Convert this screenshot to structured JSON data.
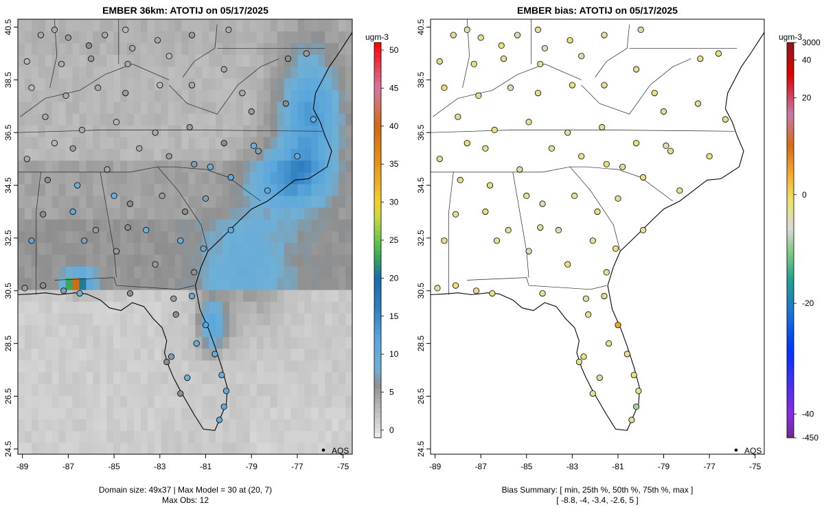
{
  "chart_data": [
    {
      "type": "heatmap",
      "title": "EMBER 36km: ATOTIJ on 05/17/2025",
      "xticks": [
        "-89",
        "-87",
        "-85",
        "-83",
        "-81",
        "-79",
        "-77",
        "-75"
      ],
      "yticks": [
        "24.5",
        "26.5",
        "28.5",
        "30.5",
        "32.5",
        "34.5",
        "36.5",
        "38.5",
        "40.5"
      ],
      "xlim": [
        -89.2,
        -74.6
      ],
      "ylim": [
        24.3,
        40.8
      ],
      "colorbar": {
        "unit": "ugm-3",
        "ticks": [
          "0",
          "5",
          "10",
          "15",
          "20",
          "25",
          "30",
          "35",
          "40",
          "45",
          "50"
        ],
        "range": [
          -1,
          51
        ]
      },
      "legend": "AQS",
      "footer": [
        "Domain size: 49x37 | Max Model = 30 at (20, 7)",
        "Max Obs: 12"
      ]
    },
    {
      "type": "scatter",
      "title": "EMBER bias: ATOTIJ on 05/17/2025",
      "xticks": [
        "-89",
        "-87",
        "-85",
        "-83",
        "-81",
        "-79",
        "-77",
        "-75"
      ],
      "yticks": [
        "24.5",
        "26.5",
        "28.5",
        "30.5",
        "32.5",
        "34.5",
        "36.5",
        "38.5",
        "40.5"
      ],
      "xlim": [
        -89.2,
        -74.6
      ],
      "ylim": [
        24.3,
        40.8
      ],
      "colorbar": {
        "unit": "ugm-3",
        "ticks": [
          "-450",
          "-40",
          "-20",
          "0",
          "20",
          "40",
          "3000"
        ]
      },
      "legend": "AQS",
      "footer": [
        "Bias Summary: [ min, 25th %, 50th %, 75th %, max ]",
        "[ -8.8,   -4,   -3.4,   -2.6,   5 ]"
      ]
    }
  ],
  "stations": [
    {
      "lon": -88.2,
      "lat": 40.2,
      "obs": 4,
      "bias": -3
    },
    {
      "lon": -87.6,
      "lat": 40.4,
      "obs": 4,
      "bias": -4
    },
    {
      "lon": -87.0,
      "lat": 40.1,
      "obs": 5,
      "bias": -3
    },
    {
      "lon": -86.1,
      "lat": 39.8,
      "obs": 6,
      "bias": -2
    },
    {
      "lon": -85.4,
      "lat": 40.2,
      "obs": 4,
      "bias": -4
    },
    {
      "lon": -84.5,
      "lat": 40.4,
      "obs": 3,
      "bias": -3
    },
    {
      "lon": -83.1,
      "lat": 40.0,
      "obs": 4,
      "bias": -2
    },
    {
      "lon": -81.6,
      "lat": 40.2,
      "obs": 5,
      "bias": -3
    },
    {
      "lon": -80.0,
      "lat": 40.4,
      "obs": 4,
      "bias": -4
    },
    {
      "lon": -88.8,
      "lat": 39.2,
      "obs": 3,
      "bias": -3
    },
    {
      "lon": -87.3,
      "lat": 39.1,
      "obs": 4,
      "bias": -2
    },
    {
      "lon": -86.0,
      "lat": 39.3,
      "obs": 5,
      "bias": -3
    },
    {
      "lon": -84.4,
      "lat": 39.1,
      "obs": 4,
      "bias": -3
    },
    {
      "lon": -82.6,
      "lat": 39.4,
      "obs": 3,
      "bias": -4
    },
    {
      "lon": -80.2,
      "lat": 38.9,
      "obs": 4,
      "bias": -3
    },
    {
      "lon": -77.4,
      "lat": 39.3,
      "obs": 6,
      "bias": -3
    },
    {
      "lon": -76.6,
      "lat": 39.5,
      "obs": 5,
      "bias": -2
    },
    {
      "lon": -88.6,
      "lat": 38.2,
      "obs": 3,
      "bias": -2
    },
    {
      "lon": -87.1,
      "lat": 37.9,
      "obs": 4,
      "bias": -3
    },
    {
      "lon": -85.7,
      "lat": 38.2,
      "obs": 4,
      "bias": -4
    },
    {
      "lon": -84.5,
      "lat": 38.0,
      "obs": 5,
      "bias": -3
    },
    {
      "lon": -83.0,
      "lat": 38.3,
      "obs": 3,
      "bias": -2
    },
    {
      "lon": -81.6,
      "lat": 38.3,
      "obs": 4,
      "bias": -3
    },
    {
      "lon": -79.4,
      "lat": 38.0,
      "obs": 4,
      "bias": -2
    },
    {
      "lon": -77.5,
      "lat": 37.6,
      "obs": 6,
      "bias": -3
    },
    {
      "lon": -76.3,
      "lat": 37.0,
      "obs": 9,
      "bias": -3
    },
    {
      "lon": -88.0,
      "lat": 37.1,
      "obs": 4,
      "bias": -3
    },
    {
      "lon": -86.4,
      "lat": 36.6,
      "obs": 4,
      "bias": -2
    },
    {
      "lon": -84.9,
      "lat": 36.9,
      "obs": 3,
      "bias": -3
    },
    {
      "lon": -83.2,
      "lat": 36.5,
      "obs": 4,
      "bias": -4
    },
    {
      "lon": -81.7,
      "lat": 36.7,
      "obs": 5,
      "bias": -3
    },
    {
      "lon": -80.2,
      "lat": 36.1,
      "obs": 6,
      "bias": -2
    },
    {
      "lon": -78.7,
      "lat": 35.8,
      "obs": 7,
      "bias": -3
    },
    {
      "lon": -77.0,
      "lat": 35.6,
      "obs": 10,
      "bias": -2
    },
    {
      "lon": -88.8,
      "lat": 35.5,
      "obs": 4,
      "bias": -3
    },
    {
      "lon": -87.6,
      "lat": 36.1,
      "obs": 3,
      "bias": -2
    },
    {
      "lon": -86.8,
      "lat": 35.9,
      "obs": 5,
      "bias": -3
    },
    {
      "lon": -85.3,
      "lat": 35.1,
      "obs": 4,
      "bias": -4
    },
    {
      "lon": -83.9,
      "lat": 35.9,
      "obs": 4,
      "bias": -3
    },
    {
      "lon": -82.6,
      "lat": 35.6,
      "obs": 5,
      "bias": -3
    },
    {
      "lon": -81.5,
      "lat": 35.3,
      "obs": 7,
      "bias": -2
    },
    {
      "lon": -80.8,
      "lat": 35.2,
      "obs": 8,
      "bias": -3
    },
    {
      "lon": -79.9,
      "lat": 34.8,
      "obs": 11,
      "bias": -2
    },
    {
      "lon": -78.3,
      "lat": 34.3,
      "obs": 11,
      "bias": -3
    },
    {
      "lon": -87.9,
      "lat": 34.7,
      "obs": 6,
      "bias": -3
    },
    {
      "lon": -86.6,
      "lat": 34.5,
      "obs": 8,
      "bias": -2
    },
    {
      "lon": -85.0,
      "lat": 34.1,
      "obs": 9,
      "bias": -3
    },
    {
      "lon": -84.3,
      "lat": 33.8,
      "obs": 6,
      "bias": -4
    },
    {
      "lon": -82.9,
      "lat": 34.1,
      "obs": 5,
      "bias": -3
    },
    {
      "lon": -81.9,
      "lat": 33.5,
      "obs": 6,
      "bias": -2
    },
    {
      "lon": -81.0,
      "lat": 34.0,
      "obs": 7,
      "bias": -3
    },
    {
      "lon": -79.9,
      "lat": 32.8,
      "obs": 11,
      "bias": -3
    },
    {
      "lon": -88.1,
      "lat": 33.4,
      "obs": 6,
      "bias": -3
    },
    {
      "lon": -86.8,
      "lat": 33.5,
      "obs": 10,
      "bias": -2
    },
    {
      "lon": -85.8,
      "lat": 32.8,
      "obs": 5,
      "bias": -3
    },
    {
      "lon": -84.4,
      "lat": 32.9,
      "obs": 6,
      "bias": -3
    },
    {
      "lon": -83.6,
      "lat": 32.8,
      "obs": 8,
      "bias": -4
    },
    {
      "lon": -82.1,
      "lat": 32.4,
      "obs": 9,
      "bias": -3
    },
    {
      "lon": -81.1,
      "lat": 32.1,
      "obs": 7,
      "bias": -2
    },
    {
      "lon": -88.6,
      "lat": 32.4,
      "obs": 12,
      "bias": -3
    },
    {
      "lon": -86.3,
      "lat": 32.4,
      "obs": 7,
      "bias": -3
    },
    {
      "lon": -84.9,
      "lat": 32.0,
      "obs": 5,
      "bias": -4
    },
    {
      "lon": -83.2,
      "lat": 31.5,
      "obs": 5,
      "bias": -2
    },
    {
      "lon": -81.5,
      "lat": 31.2,
      "obs": 6,
      "bias": -3
    },
    {
      "lon": -88.9,
      "lat": 30.6,
      "obs": 5,
      "bias": -3
    },
    {
      "lon": -88.1,
      "lat": 30.7,
      "obs": 6,
      "bias": -2
    },
    {
      "lon": -87.2,
      "lat": 30.5,
      "obs": 7,
      "bias": -3
    },
    {
      "lon": -86.5,
      "lat": 30.4,
      "obs": 8,
      "bias": -2
    },
    {
      "lon": -84.3,
      "lat": 30.4,
      "obs": 6,
      "bias": -3
    },
    {
      "lon": -82.4,
      "lat": 30.2,
      "obs": 5,
      "bias": -4
    },
    {
      "lon": -81.6,
      "lat": 30.3,
      "obs": 9,
      "bias": -3
    },
    {
      "lon": -81.0,
      "lat": 29.2,
      "obs": 12,
      "bias": 5
    },
    {
      "lon": -82.3,
      "lat": 29.6,
      "obs": 6,
      "bias": -3
    },
    {
      "lon": -81.4,
      "lat": 28.5,
      "obs": 9,
      "bias": -3
    },
    {
      "lon": -82.5,
      "lat": 28.0,
      "obs": 7,
      "bias": -2
    },
    {
      "lon": -82.7,
      "lat": 27.8,
      "obs": 6,
      "bias": -3
    },
    {
      "lon": -81.8,
      "lat": 27.2,
      "obs": 8,
      "bias": -4
    },
    {
      "lon": -80.6,
      "lat": 28.1,
      "obs": 10,
      "bias": -3
    },
    {
      "lon": -80.3,
      "lat": 27.3,
      "obs": 9,
      "bias": -2
    },
    {
      "lon": -80.1,
      "lat": 26.7,
      "obs": 10,
      "bias": -3
    },
    {
      "lon": -80.2,
      "lat": 26.1,
      "obs": 11,
      "bias": -8.8
    },
    {
      "lon": -80.4,
      "lat": 25.6,
      "obs": 10,
      "bias": -3
    },
    {
      "lon": -82.1,
      "lat": 26.6,
      "obs": 6,
      "bias": -3
    },
    {
      "lon": -84.2,
      "lat": 39.7,
      "obs": 4,
      "bias": -5
    },
    {
      "lon": -78.9,
      "lat": 36.0,
      "obs": 8,
      "bias": -4
    },
    {
      "lon": -79.0,
      "lat": 37.3,
      "obs": 5,
      "bias": -3
    }
  ],
  "model_grid": {
    "bands": [
      {
        "lat": [
          39.5,
          40.8
        ],
        "lon": [
          -89.2,
          -74.6
        ],
        "base": 3.5
      },
      {
        "lat": [
          37.5,
          39.5
        ],
        "lon": [
          -89.2,
          -74.6
        ],
        "base": 3.0
      },
      {
        "lat": [
          35.5,
          37.5
        ],
        "lon": [
          -89.2,
          -74.6
        ],
        "base": 3.0
      },
      {
        "lat": [
          33.0,
          35.5
        ],
        "lon": [
          -89.2,
          -74.6
        ],
        "base": 4.5
      },
      {
        "lat": [
          30.5,
          33.0
        ],
        "lon": [
          -89.2,
          -74.6
        ],
        "base": 5.5
      },
      {
        "lat": [
          24.3,
          30.5
        ],
        "lon": [
          -89.2,
          -74.6
        ],
        "base": 1.5
      }
    ],
    "plumes": [
      {
        "lon": -76.4,
        "lat": 37.2,
        "sx": 1.4,
        "sy": 2.4,
        "peak": 10
      },
      {
        "lon": -77.4,
        "lat": 34.8,
        "sx": 1.6,
        "sy": 1.2,
        "peak": 8
      },
      {
        "lon": -80.7,
        "lat": 29.2,
        "sx": 0.6,
        "sy": 1.0,
        "peak": 10
      },
      {
        "lon": -86.7,
        "lat": 30.7,
        "sx": 0.3,
        "sy": 0.2,
        "peak": 30
      },
      {
        "lon": -86.5,
        "lat": 30.9,
        "sx": 0.6,
        "sy": 0.4,
        "peak": 9
      },
      {
        "lon": -79.2,
        "lat": 31.5,
        "sx": 1.8,
        "sy": 2.2,
        "peak": 4
      }
    ]
  }
}
